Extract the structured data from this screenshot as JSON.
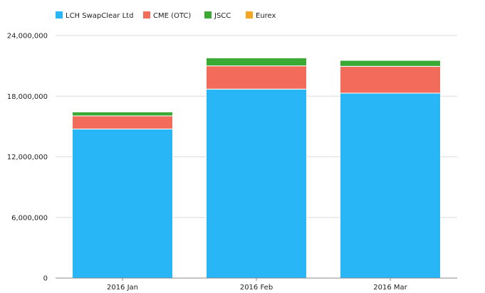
{
  "chart_data": {
    "type": "bar",
    "stacked": true,
    "categories": [
      "2016 Jan",
      "2016 Feb",
      "2016 Mar"
    ],
    "series": [
      {
        "name": "LCH SwapClear Ltd",
        "color": "#29b6f6",
        "values": [
          14750000,
          18700000,
          18300000
        ]
      },
      {
        "name": "CME (OTC)",
        "color": "#f26b5b",
        "values": [
          1300000,
          2300000,
          2650000
        ]
      },
      {
        "name": "JSCC",
        "color": "#3aaa35",
        "values": [
          400000,
          800000,
          600000
        ]
      },
      {
        "name": "Eurex",
        "color": "#f5a623",
        "values": [
          20000,
          30000,
          30000
        ]
      }
    ],
    "yticks": [
      "0",
      "6,000,000",
      "12,000,000",
      "18,000,000",
      "24,000,000"
    ],
    "ylim": [
      0,
      24000000
    ],
    "grid": true,
    "legend_position": "top-left"
  }
}
